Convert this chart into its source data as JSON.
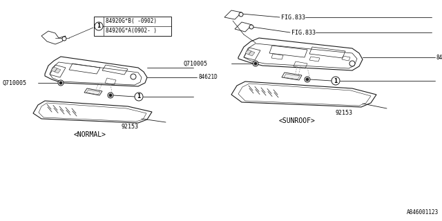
{
  "bg_color": "#ffffff",
  "line_color": "#1a1a1a",
  "gray_color": "#888888",
  "label_84920GB": "84920G*B( -0902)",
  "label_84920GA": "84920G*A(0902- )",
  "label_84621D": "84621D",
  "label_Q710005": "Q710005",
  "label_92153": "92153",
  "label_FIG833": "FIG.833",
  "label_normal": "<NORMAL>",
  "label_sunroof": "<SUNROOF>",
  "label_diagram_id": "A846001123",
  "fs_small": 6.0,
  "fs_label": 7.0,
  "lw_main": 0.8,
  "lw_thin": 0.5,
  "lw_leader": 0.6
}
